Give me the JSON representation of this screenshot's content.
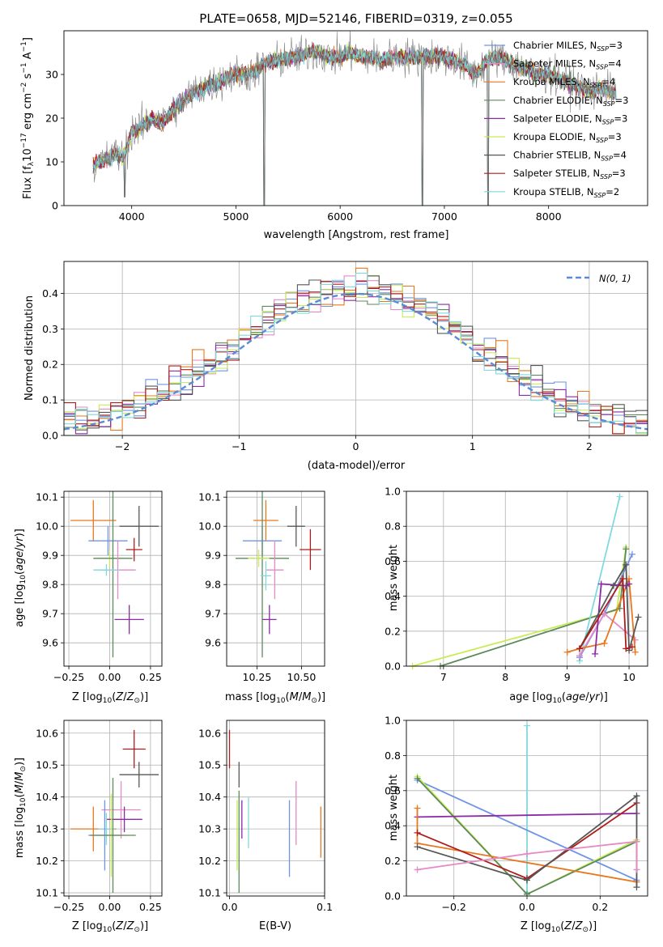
{
  "colors": {
    "Chabrier MILES": "#6f94e6",
    "Salpeter MILES": "#e68ac6",
    "Kroupa MILES": "#e8771e",
    "Chabrier ELODIE": "#5c8a5c",
    "Salpeter ELODIE": "#8d2aa6",
    "Kroupa ELODIE": "#c9ec56",
    "Chabrier STELIB": "#575757",
    "Salpeter STELIB": "#b01c1c",
    "Kroupa STELIB": "#7fd9df",
    "data": "#7f7f7f",
    "gaussian": "#5b8bd6"
  },
  "chart_data": [
    {
      "id": "spectrum",
      "type": "line",
      "title": "PLATE=0658, MJD=52146, FIBERID=0319, z=0.055",
      "xlabel": "wavelength [Angstrom, rest frame]",
      "ylabel": "Flux [f_λ10^{-17} erg cm^{-2} s^{-1} A^{-1}]",
      "xlim": [
        3350,
        8950
      ],
      "ylim": [
        0,
        40
      ],
      "xticks": [
        4000,
        5000,
        6000,
        7000,
        8000
      ],
      "yticks": [
        0,
        10,
        20,
        30
      ],
      "legend_position": "top-right",
      "legend": [
        {
          "base": "Chabrier MILES, N",
          "sub": "SSP",
          "tail": "=3"
        },
        {
          "base": "Salpeter MILES, N",
          "sub": "SSP",
          "tail": "=4"
        },
        {
          "base": "Kroupa MILES, N",
          "sub": "SSP",
          "tail": "=4"
        },
        {
          "base": "Chabrier ELODIE, N",
          "sub": "SSP",
          "tail": "=3"
        },
        {
          "base": "Salpeter ELODIE, N",
          "sub": "SSP",
          "tail": "=3"
        },
        {
          "base": "Kroupa ELODIE, N",
          "sub": "SSP",
          "tail": "=3"
        },
        {
          "base": "Chabrier STELIB, N",
          "sub": "SSP",
          "tail": "=4"
        },
        {
          "base": "Salpeter STELIB, N",
          "sub": "SSP",
          "tail": "=3"
        },
        {
          "base": "Kroupa STELIB, N",
          "sub": "SSP",
          "tail": "=2"
        }
      ],
      "continuum": {
        "x": [
          3630,
          3700,
          3800,
          3850,
          3900,
          3950,
          4000,
          4100,
          4200,
          4300,
          4400,
          4500,
          4600,
          4700,
          4800,
          4900,
          5000,
          5100,
          5200,
          5300,
          5400,
          5500,
          5600,
          5700,
          5800,
          5900,
          6000,
          6100,
          6200,
          6300,
          6400,
          6500,
          6600,
          6700,
          6800,
          6900,
          7000,
          7100,
          7200,
          7300,
          7400,
          7500,
          7600,
          7700,
          7800,
          7900,
          8000,
          8100,
          8200,
          8300,
          8400,
          8500,
          8600,
          8650
        ],
        "y": [
          9,
          10,
          11,
          12,
          11,
          13,
          17,
          18,
          20,
          19,
          22,
          24,
          26,
          27,
          28,
          29,
          30,
          30,
          31,
          33,
          33,
          34,
          34,
          35,
          35,
          34,
          34,
          35,
          34,
          34,
          33,
          34,
          34,
          34,
          34,
          34,
          34,
          33,
          32,
          30,
          33,
          34,
          33,
          32,
          31,
          30,
          30,
          29,
          28,
          27,
          26,
          27,
          26,
          26
        ]
      },
      "dips": [
        {
          "x": 3935,
          "y": 2
        },
        {
          "x": 5270,
          "y": 0
        },
        {
          "x": 6790,
          "y": 0
        },
        {
          "x": 7420,
          "y": 0
        }
      ]
    },
    {
      "id": "residuals",
      "type": "line",
      "xlabel": "(data-model)/error",
      "ylabel": "Normed distribution",
      "xlim": [
        -2.5,
        2.5
      ],
      "ylim": [
        0,
        0.49
      ],
      "xticks": [
        -2,
        -1,
        0,
        1,
        2
      ],
      "yticks": [
        0.0,
        0.1,
        0.2,
        0.3,
        0.4
      ],
      "legend_position": "top-right",
      "gaussian_label": "N(0, 1)",
      "bin_width": 0.1
    },
    {
      "id": "age-vs-Z",
      "type": "scatter",
      "xlabel": "Z [log10(Z/Z⊙)]",
      "ylabel": "age [log10(age/yr)]",
      "xlim": [
        -0.28,
        0.32
      ],
      "ylim": [
        9.52,
        10.12
      ],
      "xticks": [
        -0.25,
        0,
        0.25
      ],
      "xticklabels": [
        "−0.25",
        "0.00",
        "0.25"
      ],
      "yticks": [
        9.6,
        9.7,
        9.8,
        9.9,
        10.0,
        10.1
      ],
      "points": [
        {
          "model": "Kroupa MILES",
          "x": -0.1,
          "xerr": 0.14,
          "y": 10.02,
          "yerr": 0.07
        },
        {
          "model": "Chabrier MILES",
          "x": -0.01,
          "xerr": 0.12,
          "y": 9.95,
          "yerr": 0.05
        },
        {
          "model": "Chabrier STELIB",
          "x": 0.18,
          "xerr": 0.12,
          "y": 10.0,
          "yerr": 0.07
        },
        {
          "model": "Salpeter STELIB",
          "x": 0.15,
          "xerr": 0.05,
          "y": 9.92,
          "yerr": 0.04
        },
        {
          "model": "Kroupa ELODIE",
          "x": 0.0,
          "xerr": 0.09,
          "y": 9.89,
          "yerr": 0.03
        },
        {
          "model": "Chabrier ELODIE",
          "x": 0.02,
          "xerr": 0.12,
          "y": 9.89,
          "yerr": 0.34
        },
        {
          "model": "Salpeter MILES",
          "x": 0.05,
          "xerr": 0.11,
          "y": 9.85,
          "yerr": 0.1
        },
        {
          "model": "Kroupa STELIB",
          "x": -0.02,
          "xerr": 0.08,
          "y": 9.85,
          "yerr": 0.02
        },
        {
          "model": "Salpeter ELODIE",
          "x": 0.12,
          "xerr": 0.09,
          "y": 9.68,
          "yerr": 0.05
        }
      ]
    },
    {
      "id": "age-vs-mass",
      "type": "scatter",
      "xlabel": "mass [log10(M/M⊙)]",
      "xlim": [
        10.08,
        10.63
      ],
      "ylim": [
        9.52,
        10.12
      ],
      "xticks": [
        10.25,
        10.5
      ],
      "xticklabels": [
        "10.25",
        "10.50"
      ],
      "yticks": [
        9.6,
        9.7,
        9.8,
        9.9,
        10.0,
        10.1
      ],
      "points": [
        {
          "model": "Kroupa MILES",
          "x": 10.3,
          "xerr": 0.07,
          "y": 10.02,
          "yerr": 0.07
        },
        {
          "model": "Chabrier MILES",
          "x": 10.28,
          "xerr": 0.11,
          "y": 9.95,
          "yerr": 0.05
        },
        {
          "model": "Chabrier STELIB",
          "x": 10.47,
          "xerr": 0.05,
          "y": 10.0,
          "yerr": 0.07
        },
        {
          "model": "Salpeter STELIB",
          "x": 10.55,
          "xerr": 0.06,
          "y": 9.92,
          "yerr": 0.07
        },
        {
          "model": "Chabrier ELODIE",
          "x": 10.28,
          "xerr": 0.15,
          "y": 9.89,
          "yerr": 0.34
        },
        {
          "model": "Kroupa ELODIE",
          "x": 10.26,
          "xerr": 0.06,
          "y": 9.89,
          "yerr": 0.03
        },
        {
          "model": "Salpeter MILES",
          "x": 10.35,
          "xerr": 0.05,
          "y": 9.85,
          "yerr": 0.1
        },
        {
          "model": "Kroupa STELIB",
          "x": 10.3,
          "xerr": 0.03,
          "y": 9.83,
          "yerr": 0.05
        },
        {
          "model": "Salpeter ELODIE",
          "x": 10.32,
          "xerr": 0.04,
          "y": 9.68,
          "yerr": 0.05
        }
      ]
    },
    {
      "id": "weight-vs-age",
      "type": "line",
      "xlabel": "age [log10(age/yr)]",
      "ylabel": "mass weight",
      "xlim": [
        6.4,
        10.3
      ],
      "ylim": [
        0,
        1
      ],
      "xticks": [
        7,
        8,
        9,
        10
      ],
      "yticks": [
        0.0,
        0.2,
        0.4,
        0.6,
        0.8,
        1.0
      ],
      "series": [
        {
          "model": "Kroupa ELODIE",
          "x": [
            6.5,
            9.8,
            9.95
          ],
          "y": [
            0.0,
            0.32,
            0.68
          ]
        },
        {
          "model": "Chabrier ELODIE",
          "x": [
            6.95,
            9.85,
            9.95
          ],
          "y": [
            0.0,
            0.33,
            0.67
          ]
        },
        {
          "model": "Kroupa STELIB",
          "x": [
            9.2,
            9.85
          ],
          "y": [
            0.03,
            0.97
          ]
        },
        {
          "model": "Chabrier MILES",
          "x": [
            9.2,
            9.6,
            10.05
          ],
          "y": [
            0.05,
            0.3,
            0.64
          ]
        },
        {
          "model": "Salpeter MILES",
          "x": [
            9.2,
            9.6,
            10.1
          ],
          "y": [
            0.06,
            0.3,
            0.15
          ]
        },
        {
          "model": "Kroupa MILES",
          "x": [
            9.0,
            9.2,
            9.6,
            10.0,
            10.1
          ],
          "y": [
            0.08,
            0.1,
            0.13,
            0.5,
            0.08
          ]
        },
        {
          "model": "Salpeter ELODIE",
          "x": [
            9.45,
            9.55,
            9.95,
            10.0
          ],
          "y": [
            0.07,
            0.47,
            0.46,
            0.47
          ]
        },
        {
          "model": "Chabrier STELIB",
          "x": [
            9.2,
            9.75,
            9.95,
            10.0,
            10.15
          ],
          "y": [
            0.1,
            0.46,
            0.58,
            0.09,
            0.28
          ]
        },
        {
          "model": "Salpeter STELIB",
          "x": [
            9.2,
            9.9,
            9.95,
            10.05
          ],
          "y": [
            0.1,
            0.5,
            0.1,
            0.11
          ]
        }
      ]
    },
    {
      "id": "mass-vs-Z",
      "type": "scatter",
      "xlabel": "Z [log10(Z/Z⊙)]",
      "ylabel": "mass [log10(M/M⊙)]",
      "xlim": [
        -0.28,
        0.32
      ],
      "ylim": [
        10.09,
        10.64
      ],
      "xticks": [
        -0.25,
        0,
        0.25
      ],
      "xticklabels": [
        "−0.25",
        "0.00",
        "0.25"
      ],
      "yticks": [
        10.1,
        10.2,
        10.3,
        10.4,
        10.5,
        10.6
      ],
      "points": [
        {
          "model": "Salpeter STELIB",
          "x": 0.15,
          "xerr": 0.07,
          "y": 10.55,
          "yerr": 0.06
        },
        {
          "model": "Chabrier STELIB",
          "x": 0.18,
          "xerr": 0.12,
          "y": 10.47,
          "yerr": 0.04
        },
        {
          "model": "Salpeter MILES",
          "x": 0.07,
          "xerr": 0.12,
          "y": 10.36,
          "yerr": 0.09
        },
        {
          "model": "Salpeter ELODIE",
          "x": 0.09,
          "xerr": 0.11,
          "y": 10.33,
          "yerr": 0.04
        },
        {
          "model": "Kroupa MILES",
          "x": -0.1,
          "xerr": 0.14,
          "y": 10.3,
          "yerr": 0.07
        },
        {
          "model": "Kroupa STELIB",
          "x": -0.02,
          "xerr": 0.05,
          "y": 10.3,
          "yerr": 0.05
        },
        {
          "model": "Chabrier MILES",
          "x": -0.03,
          "xerr": 0.1,
          "y": 10.28,
          "yerr": 0.11
        },
        {
          "model": "Kroupa ELODIE",
          "x": 0.01,
          "xerr": 0.1,
          "y": 10.28,
          "yerr": 0.13
        },
        {
          "model": "Chabrier ELODIE",
          "x": 0.02,
          "xerr": 0.14,
          "y": 10.28,
          "yerr": 0.18
        }
      ]
    },
    {
      "id": "mass-vs-EBV",
      "type": "scatter",
      "xlabel": "E(B-V)",
      "xlim": [
        -0.003,
        0.1
      ],
      "ylim": [
        10.09,
        10.64
      ],
      "xticks": [
        0.0,
        0.1
      ],
      "xticklabels": [
        "0.0",
        "0.1"
      ],
      "yticks": [
        10.1,
        10.2,
        10.3,
        10.4,
        10.5,
        10.6
      ],
      "points": [
        {
          "model": "Salpeter STELIB",
          "x": 0.0,
          "y": 10.55,
          "yerr": 0.06
        },
        {
          "model": "Chabrier STELIB",
          "x": 0.01,
          "y": 10.47,
          "yerr": 0.04
        },
        {
          "model": "Salpeter ELODIE",
          "x": 0.013,
          "y": 10.33,
          "yerr": 0.06
        },
        {
          "model": "Kroupa ELODIE",
          "x": 0.008,
          "y": 10.28,
          "yerr": 0.11
        },
        {
          "model": "Chabrier ELODIE",
          "x": 0.01,
          "y": 10.26,
          "yerr": 0.16
        },
        {
          "model": "Kroupa STELIB",
          "x": 0.02,
          "y": 10.32,
          "yerr": 0.08
        },
        {
          "model": "Chabrier MILES",
          "x": 0.063,
          "y": 10.27,
          "yerr": 0.12
        },
        {
          "model": "Salpeter MILES",
          "x": 0.07,
          "y": 10.35,
          "yerr": 0.1
        },
        {
          "model": "Kroupa MILES",
          "x": 0.096,
          "y": 10.29,
          "yerr": 0.08
        }
      ]
    },
    {
      "id": "weight-vs-Z",
      "type": "line",
      "xlabel": "Z [log10(Z/Z⊙)]",
      "ylabel": "mass weight",
      "xlim": [
        -0.33,
        0.33
      ],
      "ylim": [
        0,
        1
      ],
      "xticks": [
        -0.2,
        0.0,
        0.2
      ],
      "xticklabels": [
        "−0.2",
        "0.0",
        "0.2"
      ],
      "yticks": [
        0.0,
        0.2,
        0.4,
        0.6,
        0.8,
        1.0
      ],
      "series": [
        {
          "model": "Kroupa STELIB",
          "x": [
            0.0,
            0.0
          ],
          "y": [
            0.02,
            0.97
          ]
        },
        {
          "model": "Chabrier MILES",
          "x": [
            -0.3,
            0.3
          ],
          "y": [
            0.66,
            0.09
          ]
        },
        {
          "model": "Kroupa ELODIE",
          "x": [
            -0.3,
            0.0,
            0.3
          ],
          "y": [
            0.68,
            0.01,
            0.32
          ]
        },
        {
          "model": "Chabrier ELODIE",
          "x": [
            -0.3,
            0.0,
            0.3
          ],
          "y": [
            0.67,
            0.01,
            0.31
          ]
        },
        {
          "model": "Salpeter ELODIE",
          "x": [
            -0.3,
            0.3
          ],
          "y": [
            0.45,
            0.47
          ]
        },
        {
          "model": "Kroupa MILES",
          "x": [
            -0.3,
            -0.3,
            0.3
          ],
          "y": [
            0.5,
            0.3,
            0.08
          ]
        },
        {
          "model": "Salpeter STELIB",
          "x": [
            -0.3,
            0.0,
            0.3
          ],
          "y": [
            0.36,
            0.1,
            0.53
          ]
        },
        {
          "model": "Chabrier STELIB",
          "x": [
            -0.3,
            0.0,
            0.3,
            0.3
          ],
          "y": [
            0.28,
            0.09,
            0.57,
            0.05
          ]
        },
        {
          "model": "Salpeter MILES",
          "x": [
            -0.3,
            0.0,
            0.3,
            0.3
          ],
          "y": [
            0.15,
            0.24,
            0.31,
            0.15
          ]
        }
      ]
    }
  ]
}
